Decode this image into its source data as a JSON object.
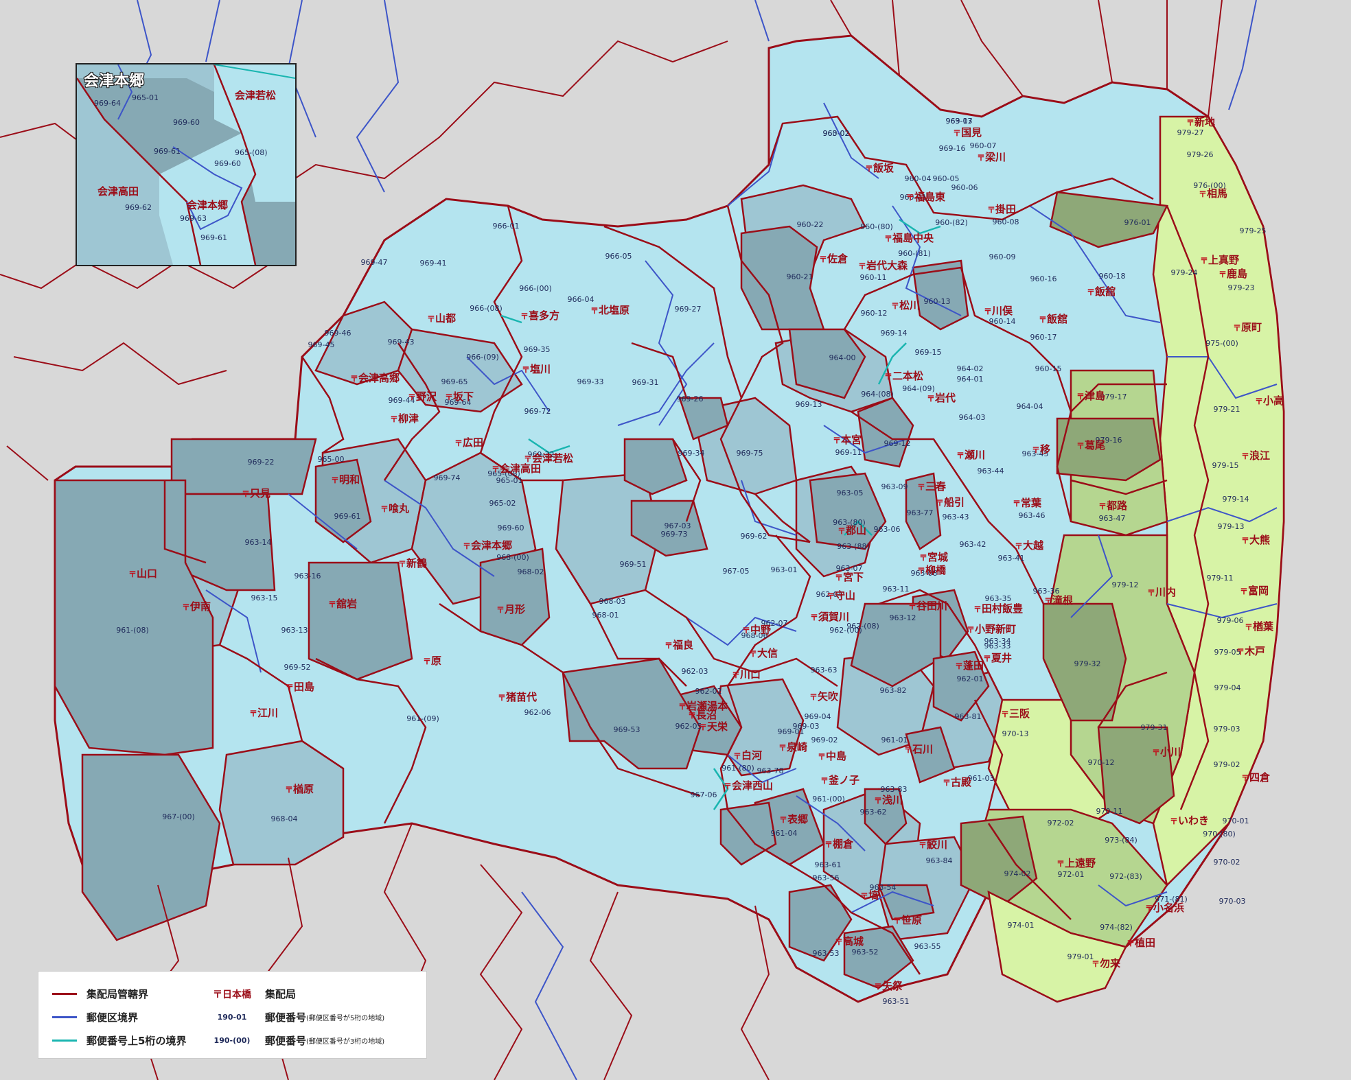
{
  "colors": {
    "background": "#d8d8d8",
    "shade_light": "#b4e4ef",
    "shade_mid": "#9ec6d3",
    "shade_dark": "#86a9b4",
    "coast_light": "#d7f3a6",
    "coast_mid": "#b5d690",
    "coast_dark": "#8ea878",
    "office_boundary": "#9b0d18",
    "district_boundary": "#3d55c8",
    "prefix_boundary": "#19b5b0"
  },
  "inset": {
    "title": "会津本郷",
    "codes": [
      "969-64",
      "965-01",
      "969-60",
      "969-61",
      "969-60",
      "965-(08)",
      "969-62",
      "969-63",
      "969-61"
    ],
    "offices": [
      "会津若松",
      "会津高田",
      "会津本郷"
    ]
  },
  "legend": {
    "office_boundary": "集配局管轄界",
    "district_boundary": "郵便区境界",
    "prefix_boundary": "郵便番号上5桁の境界",
    "office_sample": "日本橋",
    "office_label": "集配局",
    "code5_sample": "190-01",
    "code5_label": "郵便番号",
    "code5_note": "(郵便区番号が5桁の地域)",
    "code3_sample": "190-(00)",
    "code3_label": "郵便番号",
    "code3_note": "(郵便区番号が3桁の地域)"
  },
  "offices": [
    "国見",
    "梁川",
    "飯坂",
    "福島東",
    "掛田",
    "福島中央",
    "佐倉",
    "岩代大森",
    "松川",
    "川俣",
    "飯舘",
    "飯舘",
    "二本松",
    "岩代",
    "本宮",
    "瀬川",
    "移",
    "郡山",
    "三春",
    "船引",
    "常葉",
    "大越",
    "都路",
    "宮城",
    "柳橋",
    "守山",
    "谷田川",
    "田村飯豊",
    "小野新町",
    "滝根",
    "夏井",
    "須賀川",
    "蓬田",
    "矢吹",
    "泉崎",
    "白河",
    "中島",
    "石川",
    "古殿",
    "釜ノ子",
    "浅川",
    "表郷",
    "棚倉",
    "塙",
    "鮫川",
    "笹原",
    "高城",
    "矢祭",
    "新地",
    "相馬",
    "鹿島",
    "原町",
    "上真野",
    "小高",
    "浪江",
    "大熊",
    "富岡",
    "川内",
    "葛尾",
    "楢葉",
    "木戸",
    "三阪",
    "小川",
    "四倉",
    "いわき",
    "上遠野",
    "小名浜",
    "植田",
    "勿来",
    "津島",
    "喜多方",
    "北塩原",
    "山都",
    "塩川",
    "会津高郷",
    "野沢",
    "坂下",
    "柳津",
    "広田",
    "新鶴",
    "会津若松",
    "会津高田",
    "会津本郷",
    "原",
    "猪苗代",
    "月形",
    "中野",
    "福良",
    "岩瀬湯本",
    "長沼",
    "天栄",
    "大信",
    "川口",
    "宮下",
    "会津西山",
    "只見",
    "明和",
    "喰丸",
    "山口",
    "伊南",
    "舘岩",
    "田島",
    "江川",
    "楢原"
  ],
  "codes": [
    "960-02",
    "969-17",
    "960-07",
    "969-16",
    "960-04",
    "960-05",
    "960-06",
    "960-01",
    "960-(82)",
    "960-22",
    "960-(80)",
    "960-08",
    "960-(81)",
    "960-09",
    "960-21",
    "960-11",
    "960-16",
    "960-18",
    "960-12",
    "960-13",
    "960-14",
    "960-17",
    "969-14",
    "969-15",
    "964-00",
    "964-02",
    "964-01",
    "960-15",
    "969-13",
    "964-(08)",
    "964-(09)",
    "964-04",
    "964-03",
    "969-12",
    "969-11",
    "963-44",
    "963-45",
    "963-05",
    "963-09",
    "963-77",
    "963-43",
    "963-46",
    "963-47",
    "963-(80)",
    "963-06",
    "963-(88)",
    "963-42",
    "963-41",
    "963-07",
    "963-08",
    "963-01",
    "963-11",
    "963-12",
    "963-36",
    "963-35",
    "963-34",
    "963-33",
    "962-04",
    "962-(00)",
    "962-(08)",
    "962-07",
    "962-01",
    "963-82",
    "963-63",
    "963-81",
    "969-04",
    "969-02",
    "969-01",
    "961-01",
    "963-78",
    "961-(00)",
    "961-03",
    "963-83",
    "963-62",
    "961-04",
    "963-61",
    "963-56",
    "963-54",
    "963-84",
    "963-53",
    "963-52",
    "963-55",
    "963-51",
    "976-01",
    "976-(00)",
    "979-27",
    "979-26",
    "979-25",
    "979-24",
    "979-23",
    "975-(00)",
    "979-17",
    "979-21",
    "979-16",
    "979-15",
    "979-14",
    "979-13",
    "979-12",
    "979-11",
    "979-06",
    "979-05",
    "979-32",
    "979-04",
    "970-13",
    "979-31",
    "979-03",
    "970-12",
    "979-02",
    "970-11",
    "970-01",
    "973-(84)",
    "970-(80)",
    "970-02",
    "972-02",
    "972-01",
    "972-(83)",
    "974-02",
    "971-(81)",
    "970-03",
    "974-01",
    "974-(82)",
    "979-01",
    "966-01",
    "969-41",
    "969-47",
    "966-05",
    "966-(00)",
    "966-(08)",
    "966-04",
    "969-27",
    "969-46",
    "969-45",
    "969-43",
    "969-35",
    "966-(09)",
    "969-33",
    "969-31",
    "969-26",
    "969-65",
    "969-64",
    "969-44",
    "969-72",
    "969-34",
    "969-32",
    "965-00",
    "965-01",
    "969-22",
    "965-(08)",
    "965-02",
    "969-74",
    "969-60",
    "969-61",
    "968-(00)",
    "969-75",
    "969-73",
    "969-62",
    "969-51",
    "963-14",
    "963-16",
    "963-15",
    "963-13",
    "968-03",
    "968-01",
    "968-06",
    "968-02",
    "962-03",
    "962-02",
    "962-05",
    "962-06",
    "969-52",
    "969-53",
    "969-03",
    "967-06",
    "961-(80)",
    "961-(09)",
    "961-(08)",
    "967-(00)",
    "968-04",
    "967-05",
    "967-03",
    "963-02",
    "963-03"
  ]
}
